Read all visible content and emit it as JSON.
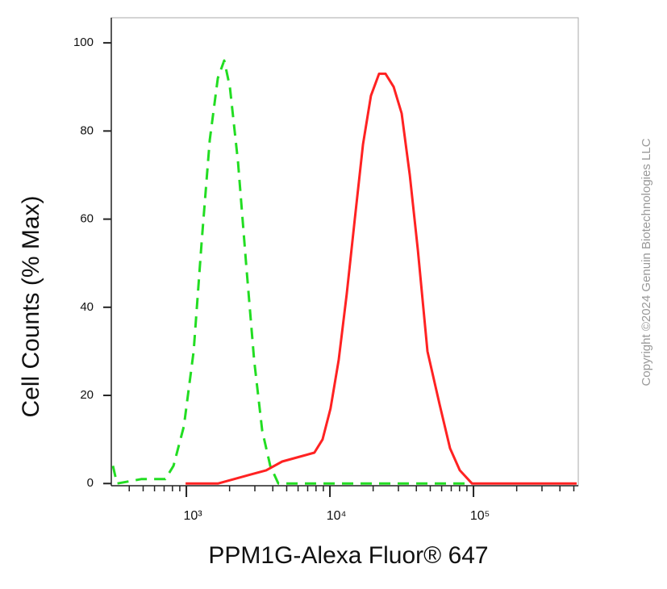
{
  "chart_data": {
    "type": "line",
    "xlabel": "PPM1G-Alexa Fluor® 647",
    "ylabel": "Cell Counts (% Max)",
    "annotation": "Copyright ©2024 Genuin Biotechnologies LLC",
    "xscale": "log",
    "xlim": [
      300,
      537000
    ],
    "ylim": [
      -0.5,
      105.7
    ],
    "xticks": [
      {
        "value": 1000,
        "label": "10³"
      },
      {
        "value": 10000,
        "label": "10⁴"
      },
      {
        "value": 100000,
        "label": "10⁵"
      }
    ],
    "xminorticks": [
      400,
      500,
      600,
      700,
      800,
      900,
      2000,
      3000,
      4000,
      5000,
      6000,
      7000,
      8000,
      9000,
      20000,
      30000,
      40000,
      50000,
      60000,
      70000,
      80000,
      90000,
      200000,
      300000,
      400000,
      500000
    ],
    "yticks": [
      0,
      20,
      40,
      60,
      80,
      100
    ],
    "series": [
      {
        "color": "#22dd22",
        "linestyle": "dashed",
        "x": [
          308,
          329,
          485,
          714,
          813,
          961,
          1124,
          1279,
          1455,
          1656,
          1836,
          2010,
          2289,
          2605,
          2965,
          3374,
          3841,
          4371,
          91400
        ],
        "values": [
          4,
          0,
          1,
          1,
          4,
          13,
          30,
          55,
          78,
          92,
          96,
          90,
          73,
          50,
          28,
          12,
          4,
          0,
          0
        ]
      },
      {
        "color": "#ff2222",
        "linestyle": "solid",
        "x": [
          987,
          1656,
          2145,
          2776,
          3594,
          4652,
          6022,
          7795,
          8878,
          10100,
          11500,
          13100,
          14900,
          17000,
          19300,
          22000,
          24400,
          27800,
          31600,
          36000,
          41000,
          47800,
          58000,
          68700,
          80300,
          97800,
          523000
        ],
        "values": [
          0,
          0,
          1,
          2,
          3,
          5,
          6,
          7,
          10,
          17,
          28,
          43,
          60,
          77,
          88,
          93,
          93,
          90,
          84,
          70,
          53,
          30,
          18,
          8,
          3,
          0,
          0
        ]
      }
    ]
  }
}
